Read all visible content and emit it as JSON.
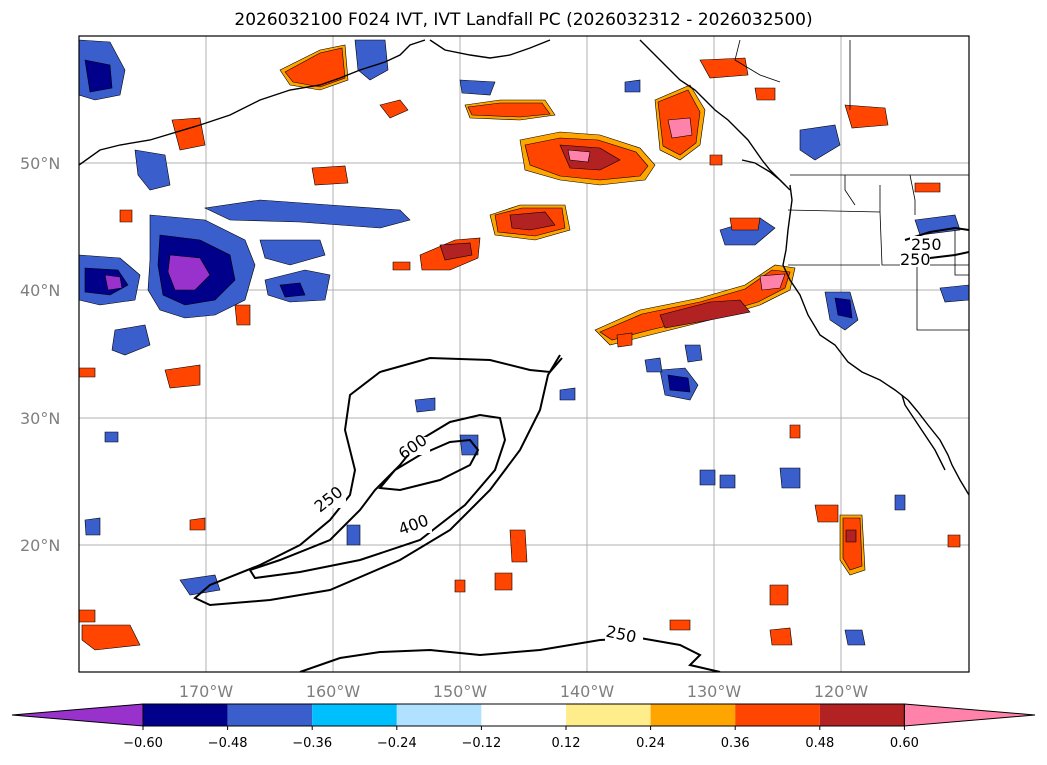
{
  "title": "2026032100 F024 IVT, IVT Landfall PC (2026032312 - 2026032500)",
  "lat_ticks": [
    "50°N",
    "40°N",
    "30°N",
    "20°N"
  ],
  "lon_ticks": [
    "170°W",
    "160°W",
    "150°W",
    "140°W",
    "130°W",
    "120°W"
  ],
  "colorbar": {
    "tick_labels": [
      "−0.60",
      "−0.48",
      "−0.36",
      "−0.24",
      "−0.12",
      "0.12",
      "0.24",
      "0.36",
      "0.48",
      "0.60"
    ],
    "colors": [
      "#9932cc",
      "#00008b",
      "#3a5fcd",
      "#00bfff",
      "#b0e2ff",
      "#ffffff",
      "#ffec8b",
      "#ffa500",
      "#ff4500",
      "#b22222",
      "#ff82ab"
    ]
  },
  "contour_labels": [
    "600",
    "400",
    "250",
    "250",
    "250",
    "250"
  ],
  "colors": {
    "purple": "#9932cc",
    "navy": "#00008b",
    "blue": "#3a5fcd",
    "sky": "#00bfff",
    "light_blue": "#b0e2ff",
    "yellow": "#ffec8b",
    "orange": "#ffa500",
    "red_orange": "#ff4500",
    "dark_red": "#b22222",
    "pink": "#ff82ab"
  }
}
